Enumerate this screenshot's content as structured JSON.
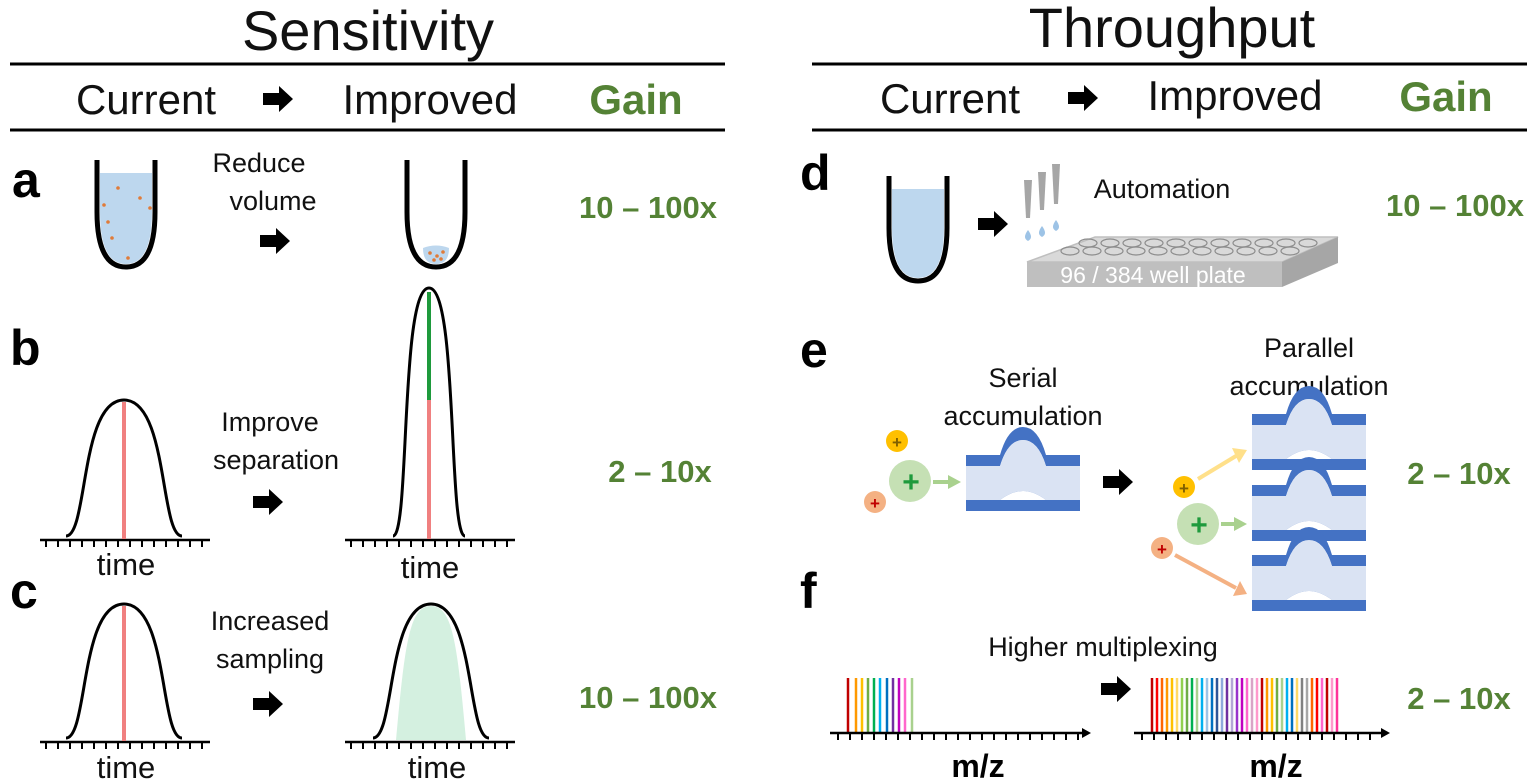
{
  "sensitivity": {
    "title": "Sensitivity",
    "header": {
      "current": "Current",
      "improved": "Improved",
      "gain": "Gain"
    },
    "a": {
      "letter": "a",
      "label_line1": "Reduce",
      "label_line2": "volume",
      "gain": "10 – 100x"
    },
    "b": {
      "letter": "b",
      "label_line1": "Improve",
      "label_line2": "separation",
      "gain": "2 – 10x",
      "axis_left": "time",
      "axis_right": "time"
    },
    "c": {
      "letter": "c",
      "label_line1": "Increased",
      "label_line2": "sampling",
      "gain": "10 – 100x",
      "axis_left": "time",
      "axis_right": "time"
    }
  },
  "throughput": {
    "title": "Throughput",
    "header": {
      "current": "Current",
      "improved": "Improved",
      "gain": "Gain"
    },
    "d": {
      "letter": "d",
      "label": "Automation",
      "plate_label": "96 / 384 well plate",
      "gain": "10 – 100x"
    },
    "e": {
      "letter": "e",
      "serial_line1": "Serial",
      "serial_line2": "accumulation",
      "parallel_line1": "Parallel",
      "parallel_line2": "accumulation",
      "gain": "2 – 10x"
    },
    "f": {
      "letter": "f",
      "label": "Higher multiplexing",
      "axis_left": "m/z",
      "axis_right": "m/z",
      "gain": "2 – 10x"
    }
  },
  "colors": {
    "gain_green": "#548235",
    "liquid_blue": "#bdd7ee",
    "peak_red": "#f08080",
    "peak_green": "#1e9a3c",
    "sampled_area": "#d4f0e0",
    "trap_blue": "#4472c4",
    "trap_light": "#dae3f3",
    "ion_orange": "#f4b183",
    "ion_yellow": "#ffc000",
    "ion_green": "#a9d18e"
  },
  "icons": [
    "arrow-right-icon",
    "tube-icon",
    "pipette-icon",
    "well-plate-icon",
    "ion-trap-icon",
    "ion-icon"
  ]
}
